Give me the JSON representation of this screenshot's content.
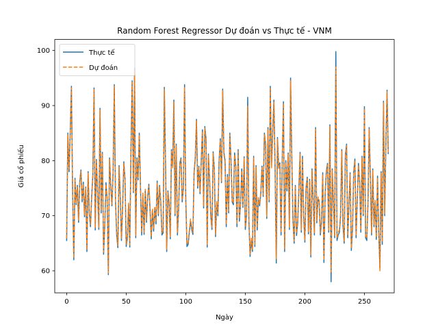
{
  "chart_data": {
    "type": "line",
    "title": "Random Forest Regressor Dự đoán vs Thực tế - VNM",
    "xlabel": "Ngày",
    "ylabel": "Giá cổ phiếu",
    "xlim": [
      -10,
      275
    ],
    "ylim": [
      56,
      102
    ],
    "xticks": [
      0,
      50,
      100,
      150,
      200,
      250
    ],
    "yticks": [
      60,
      70,
      80,
      90,
      100
    ],
    "grid": false,
    "legend_position": "top-left",
    "series": [
      {
        "name": "Thực tế",
        "color": "#1f77b4",
        "style": "solid",
        "values": [
          65.4,
          85.0,
          78.0,
          85.2,
          93.5,
          74.0,
          62.0,
          76.8,
          72.0,
          75.5,
          68.8,
          76.2,
          78.3,
          72.5,
          76.1,
          69.8,
          75.2,
          63.5,
          78.0,
          70.5,
          68.0,
          73.5,
          77.5,
          93.2,
          67.4,
          80.2,
          74.0,
          67.5,
          89.5,
          70.5,
          81.5,
          63.0,
          68.0,
          76.0,
          73.0,
          59.3,
          80.5,
          75.6,
          71.8,
          78.0,
          93.8,
          72.5,
          66.5,
          64.2,
          79.1,
          73.5,
          65.5,
          71.5,
          79.8,
          76.6,
          64.4,
          66.0,
          72.0,
          64.3,
          82.0,
          94.5,
          74.2,
          96.8,
          66.0,
          80.5,
          76.5,
          85.0,
          75.0,
          66.5,
          73.8,
          66.6,
          74.5,
          68.8,
          73.3,
          75.7,
          71.2,
          65.8,
          71.0,
          67.2,
          71.4,
          68.5,
          76.3,
          70.0,
          75.5,
          72.5,
          66.5,
          66.9,
          93.3,
          80.0,
          63.5,
          74.5,
          72.2,
          65.8,
          82.0,
          79.0,
          91.0,
          70.0,
          83.0,
          66.5,
          71.1,
          79.5,
          80.5,
          72.5,
          75.0,
          93.8,
          73.0,
          64.4,
          64.8,
          67.0,
          69.0,
          67.5,
          66.6,
          78.0,
          80.5,
          87.5,
          75.0,
          79.0,
          74.0,
          80.1,
          85.6,
          71.4,
          86.2,
          84.0,
          64.3,
          81.2,
          76.5,
          70.0,
          67.5,
          81.6,
          78.5,
          66.2,
          72.3,
          70.0,
          80.0,
          84.0,
          76.0,
          93.0,
          81.5,
          80.0,
          68.0,
          77.5,
          70.5,
          85.0,
          80.0,
          72.5,
          72.0,
          81.4,
          79.0,
          68.0,
          82.0,
          69.0,
          72.0,
          78.5,
          71.5,
          80.7,
          67.5,
          70.0,
          91.5,
          69.0,
          62.6,
          65.5,
          63.5,
          80.8,
          64.4,
          79.1,
          67.4,
          73.0,
          71.8,
          74.0,
          79.0,
          73.5,
          85.0,
          83.0,
          69.5,
          86.0,
          72.5,
          93.5,
          79.0,
          85.4,
          91.0,
          78.9,
          61.4,
          84.2,
          78.9,
          79.6,
          66.5,
          80.0,
          90.7,
          63.5,
          80.0,
          74.5,
          81.4,
          67.5,
          95.0,
          81.0,
          69.3,
          65.0,
          75.5,
          66.4,
          68.7,
          75.0,
          81.5,
          67.0,
          80.8,
          69.9,
          65.2,
          75.0,
          77.0,
          66.7,
          76.6,
          62.5,
          78.5,
          72.6,
          66.5,
          86.0,
          68.7,
          73.1,
          72.5,
          66.5,
          69.0,
          77.8,
          61.5,
          73.7,
          78.0,
          79.5,
          67.0,
          86.5,
          58.0,
          78.5,
          72.3,
          66.0,
          99.8,
          65.5,
          66.5,
          67.0,
          70.0,
          82.0,
          68.2,
          65.0,
          81.0,
          83.0,
          66.0,
          72.0,
          77.8,
          63.7,
          67.5,
          78.0,
          80.3,
          66.0,
          73.0,
          79.5,
          76.0,
          67.0,
          80.8,
          70.0,
          89.8,
          66.0,
          65.5,
          72.3,
          86.0,
          77.0,
          66.5,
          78.5,
          68.0,
          72.5,
          65.7,
          77.2,
          67.0,
          60.5,
          78.0,
          64.8,
          90.8,
          70.0,
          83.0,
          92.8,
          81.2
        ]
      },
      {
        "name": "Dự đoán",
        "color": "#ff7f0e",
        "style": "dashed",
        "values": [
          65.9,
          84.7,
          78.5,
          85.0,
          93.2,
          74.4,
          62.3,
          76.5,
          72.3,
          75.2,
          69.2,
          76.0,
          78.0,
          72.8,
          75.8,
          70.2,
          75.0,
          63.8,
          77.7,
          70.8,
          68.4,
          73.2,
          77.2,
          92.9,
          67.8,
          79.9,
          74.3,
          67.9,
          89.2,
          70.9,
          81.2,
          63.4,
          68.4,
          75.7,
          73.3,
          59.6,
          80.2,
          75.4,
          72.1,
          77.7,
          93.5,
          72.8,
          66.9,
          64.6,
          78.8,
          73.8,
          65.9,
          71.8,
          79.5,
          76.4,
          64.8,
          66.4,
          72.3,
          64.7,
          81.7,
          94.2,
          74.5,
          96.4,
          66.4,
          80.2,
          76.8,
          84.7,
          75.3,
          66.9,
          74.1,
          67.0,
          74.8,
          69.2,
          73.6,
          75.4,
          71.5,
          66.2,
          71.3,
          67.6,
          71.7,
          68.9,
          76.0,
          70.4,
          75.2,
          72.8,
          66.9,
          67.3,
          92.9,
          79.7,
          63.9,
          74.2,
          72.5,
          66.2,
          81.7,
          78.7,
          90.6,
          70.4,
          82.7,
          66.9,
          71.4,
          79.2,
          80.2,
          72.8,
          75.3,
          93.4,
          73.3,
          64.8,
          65.2,
          67.4,
          69.4,
          67.9,
          67.0,
          77.7,
          80.2,
          87.2,
          75.3,
          78.7,
          74.3,
          79.8,
          85.3,
          71.7,
          85.9,
          83.7,
          64.7,
          80.9,
          76.8,
          70.4,
          67.9,
          81.3,
          78.2,
          66.6,
          72.6,
          70.4,
          79.7,
          83.7,
          76.3,
          92.7,
          81.2,
          79.7,
          68.4,
          77.2,
          70.9,
          84.7,
          79.7,
          72.8,
          72.3,
          81.1,
          78.7,
          68.4,
          81.7,
          69.4,
          72.3,
          78.2,
          71.8,
          80.4,
          67.9,
          70.4,
          89.9,
          69.4,
          63.0,
          65.9,
          63.9,
          80.5,
          64.8,
          78.8,
          67.8,
          73.3,
          72.1,
          74.3,
          78.7,
          73.8,
          84.7,
          82.7,
          69.9,
          85.7,
          72.8,
          93.1,
          78.7,
          85.1,
          90.6,
          78.6,
          62.2,
          83.9,
          78.6,
          79.3,
          66.9,
          79.7,
          90.4,
          63.9,
          79.7,
          74.8,
          81.1,
          67.9,
          94.5,
          80.7,
          69.7,
          65.4,
          75.2,
          66.8,
          69.1,
          75.3,
          81.2,
          67.4,
          80.5,
          70.3,
          65.6,
          75.3,
          76.7,
          67.1,
          76.3,
          62.9,
          78.2,
          72.9,
          66.9,
          85.7,
          69.1,
          73.4,
          72.8,
          66.9,
          69.4,
          77.5,
          61.9,
          74.0,
          77.7,
          79.2,
          67.4,
          86.2,
          59.8,
          78.2,
          72.6,
          66.4,
          97.0,
          65.9,
          66.9,
          67.4,
          70.4,
          81.7,
          68.6,
          65.4,
          80.7,
          82.7,
          66.4,
          72.3,
          77.5,
          64.1,
          67.9,
          77.7,
          80.0,
          66.4,
          73.3,
          79.2,
          76.3,
          67.4,
          80.5,
          70.4,
          89.5,
          66.4,
          65.9,
          72.6,
          85.7,
          76.7,
          66.9,
          78.2,
          68.4,
          72.8,
          66.1,
          76.9,
          67.4,
          60.0,
          77.7,
          65.2,
          90.5,
          70.4,
          82.7,
          92.5,
          81.5
        ]
      }
    ]
  }
}
